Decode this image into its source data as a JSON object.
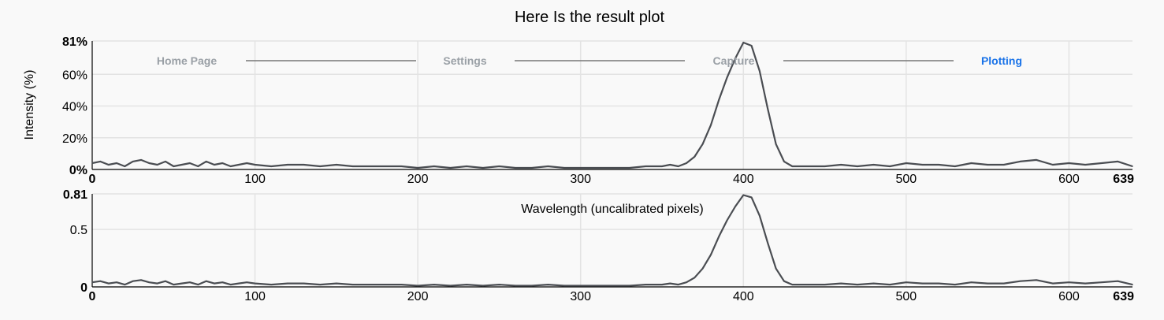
{
  "nav": {
    "steps": [
      {
        "label": "Home Page",
        "state": "inactive"
      },
      {
        "label": "Settings",
        "state": "inactive"
      },
      {
        "label": "Capture",
        "state": "inactive"
      },
      {
        "label": "Plotting",
        "state": "active"
      }
    ],
    "colors": {
      "inactive": "#9aa0a6",
      "active": "#1a73e8"
    }
  },
  "chart_data": [
    {
      "type": "line",
      "title": "Here Is the result plot",
      "ylabel": "Intensity (%)",
      "xlabel": "",
      "xlim": [
        0,
        639
      ],
      "ylim": [
        0,
        0.81
      ],
      "x_ticks": [
        "0",
        "100",
        "200",
        "300",
        "400",
        "500",
        "600",
        "639"
      ],
      "x_tick_values": [
        0,
        100,
        200,
        300,
        400,
        500,
        600,
        639
      ],
      "y_ticks": [
        "0%",
        "20%",
        "40%",
        "60%",
        "81%"
      ],
      "y_tick_values": [
        0,
        0.2,
        0.4,
        0.6,
        0.81
      ],
      "grid": true,
      "color": "#4a4d52",
      "series": [
        {
          "x": [
            0,
            5,
            10,
            15,
            20,
            25,
            30,
            35,
            40,
            45,
            50,
            55,
            60,
            65,
            70,
            75,
            80,
            85,
            90,
            95,
            100,
            110,
            120,
            130,
            140,
            150,
            160,
            170,
            180,
            190,
            200,
            210,
            220,
            230,
            240,
            250,
            260,
            270,
            280,
            290,
            300,
            310,
            320,
            330,
            340,
            350,
            355,
            360,
            365,
            370,
            375,
            380,
            385,
            390,
            395,
            400,
            405,
            410,
            415,
            420,
            425,
            430,
            440,
            450,
            460,
            470,
            480,
            490,
            500,
            510,
            520,
            530,
            540,
            550,
            560,
            570,
            580,
            590,
            600,
            610,
            620,
            630,
            639
          ],
          "y": [
            0.04,
            0.05,
            0.03,
            0.04,
            0.02,
            0.05,
            0.06,
            0.04,
            0.03,
            0.05,
            0.02,
            0.03,
            0.04,
            0.02,
            0.05,
            0.03,
            0.04,
            0.02,
            0.03,
            0.04,
            0.03,
            0.02,
            0.03,
            0.03,
            0.02,
            0.03,
            0.02,
            0.02,
            0.02,
            0.02,
            0.01,
            0.02,
            0.01,
            0.02,
            0.01,
            0.02,
            0.01,
            0.01,
            0.02,
            0.01,
            0.01,
            0.01,
            0.01,
            0.01,
            0.02,
            0.02,
            0.03,
            0.02,
            0.04,
            0.08,
            0.16,
            0.28,
            0.44,
            0.58,
            0.7,
            0.8,
            0.78,
            0.62,
            0.38,
            0.16,
            0.05,
            0.02,
            0.02,
            0.02,
            0.03,
            0.02,
            0.03,
            0.02,
            0.04,
            0.03,
            0.03,
            0.02,
            0.04,
            0.03,
            0.03,
            0.05,
            0.06,
            0.03,
            0.04,
            0.03,
            0.04,
            0.05,
            0.02
          ]
        }
      ]
    },
    {
      "type": "line",
      "title": "",
      "xlabel": "Wavelength (uncalibrated pixels)",
      "ylabel": "",
      "xlim": [
        0,
        639
      ],
      "ylim": [
        0,
        0.81
      ],
      "x_ticks": [
        "0",
        "100",
        "200",
        "300",
        "400",
        "500",
        "600",
        "639"
      ],
      "x_tick_values": [
        0,
        100,
        200,
        300,
        400,
        500,
        600,
        639
      ],
      "y_ticks": [
        "0",
        "0.5",
        "0.81"
      ],
      "y_tick_values": [
        0,
        0.5,
        0.81
      ],
      "grid": true,
      "color": "#4a4d52",
      "series": [
        {
          "x": [
            0,
            5,
            10,
            15,
            20,
            25,
            30,
            35,
            40,
            45,
            50,
            55,
            60,
            65,
            70,
            75,
            80,
            85,
            90,
            95,
            100,
            110,
            120,
            130,
            140,
            150,
            160,
            170,
            180,
            190,
            200,
            210,
            220,
            230,
            240,
            250,
            260,
            270,
            280,
            290,
            300,
            310,
            320,
            330,
            340,
            350,
            355,
            360,
            365,
            370,
            375,
            380,
            385,
            390,
            395,
            400,
            405,
            410,
            415,
            420,
            425,
            430,
            440,
            450,
            460,
            470,
            480,
            490,
            500,
            510,
            520,
            530,
            540,
            550,
            560,
            570,
            580,
            590,
            600,
            610,
            620,
            630,
            639
          ],
          "y": [
            0.04,
            0.05,
            0.03,
            0.04,
            0.02,
            0.05,
            0.06,
            0.04,
            0.03,
            0.05,
            0.02,
            0.03,
            0.04,
            0.02,
            0.05,
            0.03,
            0.04,
            0.02,
            0.03,
            0.04,
            0.03,
            0.02,
            0.03,
            0.03,
            0.02,
            0.03,
            0.02,
            0.02,
            0.02,
            0.02,
            0.01,
            0.02,
            0.01,
            0.02,
            0.01,
            0.02,
            0.01,
            0.01,
            0.02,
            0.01,
            0.01,
            0.01,
            0.01,
            0.01,
            0.02,
            0.02,
            0.03,
            0.02,
            0.04,
            0.08,
            0.16,
            0.28,
            0.44,
            0.58,
            0.7,
            0.8,
            0.78,
            0.62,
            0.38,
            0.16,
            0.05,
            0.02,
            0.02,
            0.02,
            0.03,
            0.02,
            0.03,
            0.02,
            0.04,
            0.03,
            0.03,
            0.02,
            0.04,
            0.03,
            0.03,
            0.05,
            0.06,
            0.03,
            0.04,
            0.03,
            0.04,
            0.05,
            0.02
          ]
        }
      ]
    }
  ]
}
